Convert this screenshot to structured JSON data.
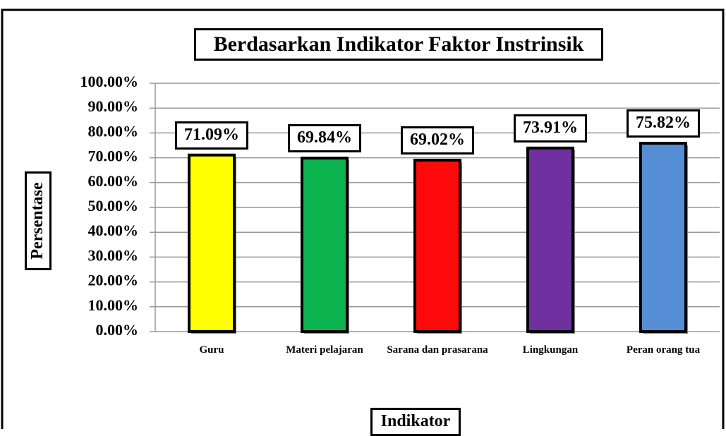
{
  "chart_data": {
    "type": "bar",
    "title": "Berdasarkan Indikator Faktor Instrinsik",
    "x_label": "Indikator",
    "y_label": "Persentase",
    "categories": [
      "Guru",
      "Materi pelajaran",
      "Sarana dan prasarana",
      "Lingkungan",
      "Peran orang tua"
    ],
    "values": [
      71.09,
      69.84,
      69.02,
      73.91,
      75.82
    ],
    "value_labels": [
      "71.09%",
      "69.84%",
      "69.02%",
      "73.91%",
      "75.82%"
    ],
    "colors": [
      "#ffff00",
      "#0bb44f",
      "#ff0a0a",
      "#7030a0",
      "#558ed5"
    ],
    "ylim": [
      0,
      100
    ],
    "yticks": [
      {
        "value": 0,
        "label": "0.00%"
      },
      {
        "value": 10,
        "label": "10.00%"
      },
      {
        "value": 20,
        "label": "20.00%"
      },
      {
        "value": 30,
        "label": "30.00%"
      },
      {
        "value": 40,
        "label": "40.00%"
      },
      {
        "value": 50,
        "label": "50.00%"
      },
      {
        "value": 60,
        "label": "60.00%"
      },
      {
        "value": 70,
        "label": "70.00%"
      },
      {
        "value": 80,
        "label": "80.00%"
      },
      {
        "value": 90,
        "label": "90.00%"
      },
      {
        "value": 100,
        "label": "100.00%"
      }
    ],
    "grid": true
  }
}
